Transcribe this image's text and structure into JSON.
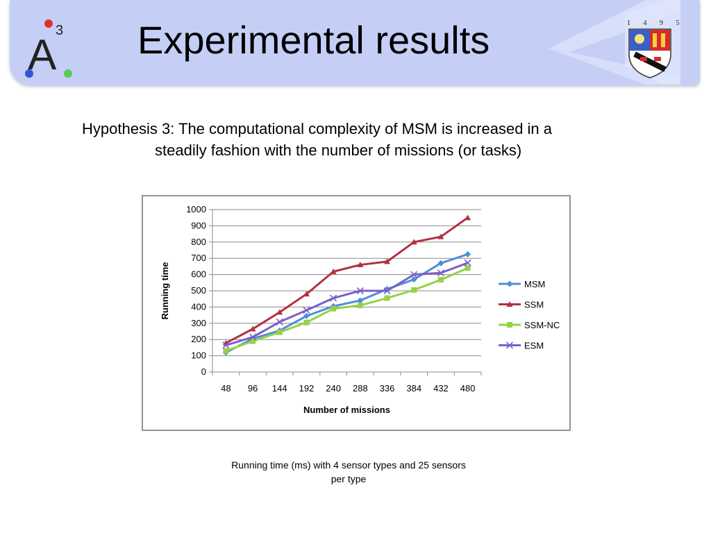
{
  "header": {
    "title": "Experimental results",
    "logo": {
      "main": "A",
      "superscript": "3"
    },
    "crest": {
      "years": [
        "1",
        "4",
        "9",
        "5"
      ]
    }
  },
  "hypothesis": {
    "line1": "Hypothesis 3: The computational complexity of MSM is increased in a",
    "line2": "steadily fashion with the number of missions (or tasks)"
  },
  "caption": {
    "line1": "Running time (ms) with 4 sensor types and 25 sensors",
    "line2": "per type"
  },
  "colors": {
    "header_band": "#c5cff6",
    "MSM": "#4a8fd9",
    "SSM": "#b0323e",
    "SSM-NC": "#97d04a",
    "ESM": "#7b5fc7"
  },
  "chart_data": {
    "type": "line",
    "title": "",
    "xlabel": "Number of missions",
    "ylabel": "Running time",
    "categories": [
      "48",
      "96",
      "144",
      "192",
      "240",
      "288",
      "336",
      "384",
      "432",
      "480"
    ],
    "ylim": [
      0,
      1000
    ],
    "yticks": [
      0,
      100,
      200,
      300,
      400,
      500,
      600,
      700,
      800,
      900,
      1000
    ],
    "grid": "horizontal",
    "legend": "right",
    "series": [
      {
        "name": "MSM",
        "marker": "diamond",
        "values": [
          120,
          205,
          255,
          345,
          405,
          440,
          510,
          570,
          670,
          725
        ]
      },
      {
        "name": "SSM",
        "marker": "triangle",
        "values": [
          178,
          265,
          368,
          480,
          618,
          660,
          680,
          800,
          833,
          950
        ]
      },
      {
        "name": "SSM-NC",
        "marker": "square",
        "values": [
          130,
          190,
          245,
          305,
          390,
          410,
          455,
          505,
          568,
          640
        ]
      },
      {
        "name": "ESM",
        "marker": "x",
        "values": [
          165,
          215,
          308,
          380,
          455,
          500,
          500,
          600,
          610,
          672
        ]
      }
    ]
  }
}
